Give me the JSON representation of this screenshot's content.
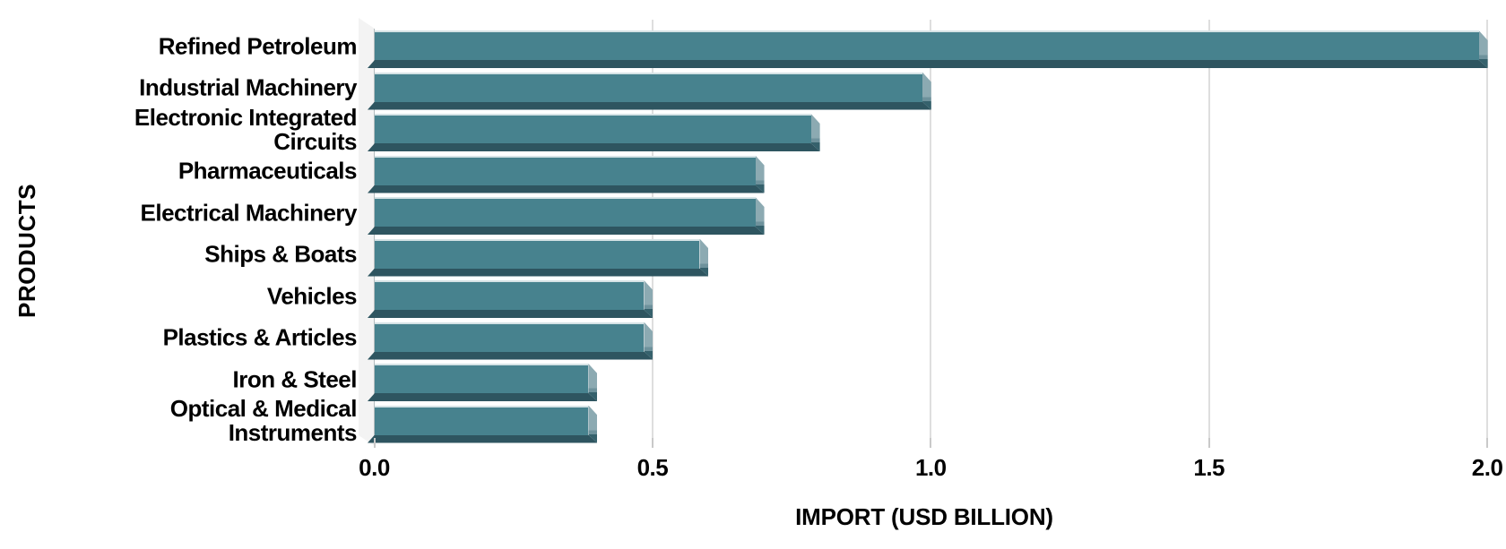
{
  "chart_data": {
    "type": "bar",
    "orientation": "horizontal",
    "xlabel": "IMPORT (USD BILLION)",
    "ylabel": "PRODUCTS",
    "categories": [
      "Refined Petroleum",
      "Industrial Machinery",
      "Electronic Integrated Circuits",
      "Pharmaceuticals",
      "Electrical Machinery",
      "Ships & Boats",
      "Vehicles",
      "Plastics & Articles",
      "Iron & Steel",
      "Optical & Medical Instruments"
    ],
    "categories_display": [
      "Refined Petroleum",
      "Industrial Machinery",
      "Electronic Integrated\nCircuits",
      "Pharmaceuticals",
      "Electrical Machinery",
      "Ships & Boats",
      "Vehicles",
      "Plastics & Articles",
      "Iron & Steel",
      "Optical & Medical\nInstruments"
    ],
    "values": [
      2.0,
      1.0,
      0.8,
      0.7,
      0.7,
      0.6,
      0.5,
      0.5,
      0.4,
      0.4
    ],
    "xlim": [
      0,
      2
    ],
    "xticks": [
      "0.0",
      "0.5",
      "1.0",
      "1.5",
      "2.0"
    ],
    "grid": "vertical-gridlines-at-xticks",
    "legend": "none",
    "style": "3d-beveled-bars",
    "colors": {
      "bar_face": "#47828e",
      "bar_bottom": "#2e5560",
      "bar_side_highlight": "#8caab2",
      "bar_side_shadow": "#35616c",
      "bar_top_line": "#d6e3e6",
      "gridline": "#dedede",
      "wall": "#f3f3f3",
      "tick": "#c9c9c9",
      "text": "#000000",
      "background": "#ffffff"
    }
  }
}
